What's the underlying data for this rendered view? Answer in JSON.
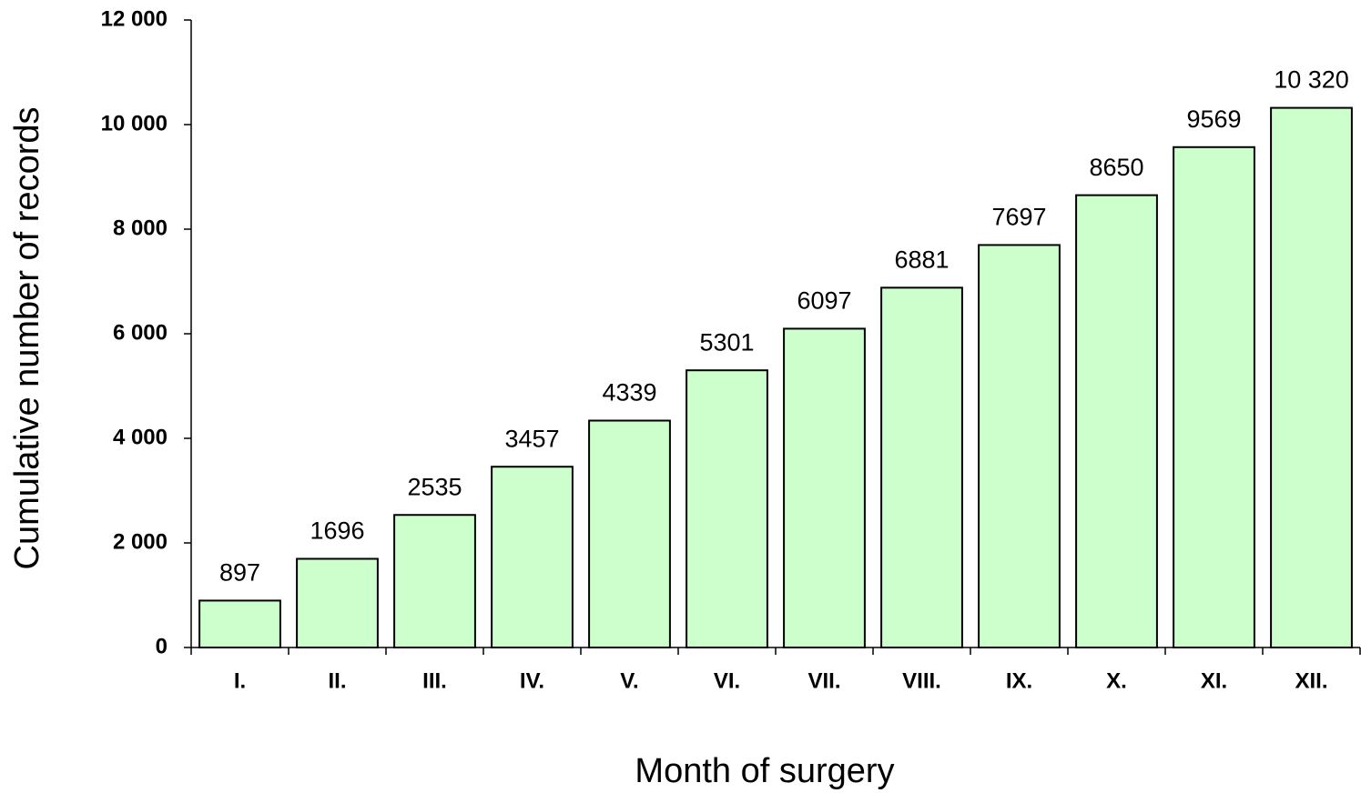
{
  "chart_data": {
    "type": "bar",
    "y_label": "Cumulative number of records",
    "x_label": "Month of surgery",
    "categories": [
      "I.",
      "II.",
      "III.",
      "IV.",
      "V.",
      "VI.",
      "VII.",
      "VIII.",
      "IX.",
      "X.",
      "XI.",
      "XII."
    ],
    "values": [
      897,
      1696,
      2535,
      3457,
      4339,
      5301,
      6097,
      6881,
      7697,
      8650,
      9569,
      10320
    ],
    "value_labels": [
      "897",
      "1696",
      "2535",
      "3457",
      "4339",
      "5301",
      "6097",
      "6881",
      "7697",
      "8650",
      "9569",
      "10 320"
    ],
    "color": "#ccffcc",
    "ylim": [
      0,
      12000
    ],
    "yticks": [
      0,
      {
        "value": 2000,
        "label": "2 000"
      },
      {
        "value": 4000,
        "label": "4 000"
      },
      {
        "value": 6000,
        "label": "6 000"
      },
      {
        "value": 8000,
        "label": "8 000"
      },
      {
        "value": 10000,
        "label": "10 000"
      },
      {
        "value": 12000,
        "label": "12 000"
      }
    ],
    "grid": false
  }
}
